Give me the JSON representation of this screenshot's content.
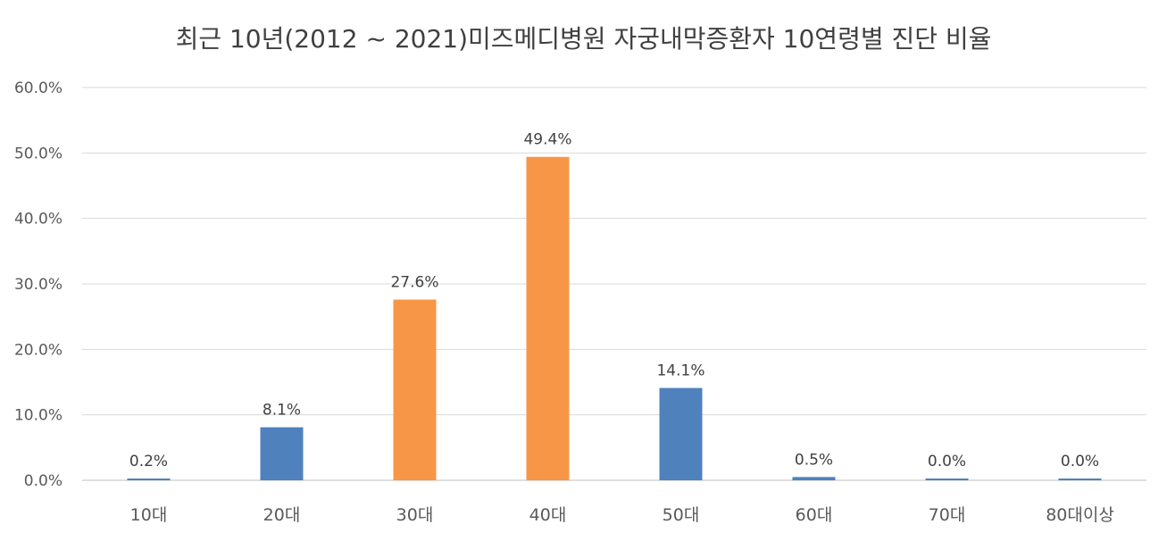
{
  "chart_data": {
    "type": "bar",
    "title": "최근 10년(2012 ~ 2021)미즈메디병원 자궁내막증환자 10연령별 진단 비율",
    "xlabel": "",
    "ylabel": "",
    "categories": [
      "10대",
      "20대",
      "30대",
      "40대",
      "50대",
      "60대",
      "70대",
      "80대이상"
    ],
    "values": [
      0.2,
      8.1,
      27.6,
      49.4,
      14.1,
      0.5,
      0.0,
      0.0
    ],
    "data_labels": [
      "0.2%",
      "8.1%",
      "27.6%",
      "49.4%",
      "14.1%",
      "0.5%",
      "0.0%",
      "0.0%"
    ],
    "bar_colors": [
      "#4f81bd",
      "#4f81bd",
      "#f79646",
      "#f79646",
      "#4f81bd",
      "#4f81bd",
      "#4f81bd",
      "#4f81bd"
    ],
    "ylim": [
      0,
      60
    ],
    "yticks": [
      0,
      10,
      20,
      30,
      40,
      50,
      60
    ],
    "ytick_labels": [
      "0.0%",
      "10.0%",
      "20.0%",
      "30.0%",
      "40.0%",
      "50.0%",
      "60.0%"
    ],
    "grid": true,
    "legend": "none",
    "colors": {
      "primary": "#4f81bd",
      "highlight": "#f79646",
      "grid": "#d9d9d9",
      "axis": "#bfbfbf",
      "text": "#595959"
    }
  }
}
